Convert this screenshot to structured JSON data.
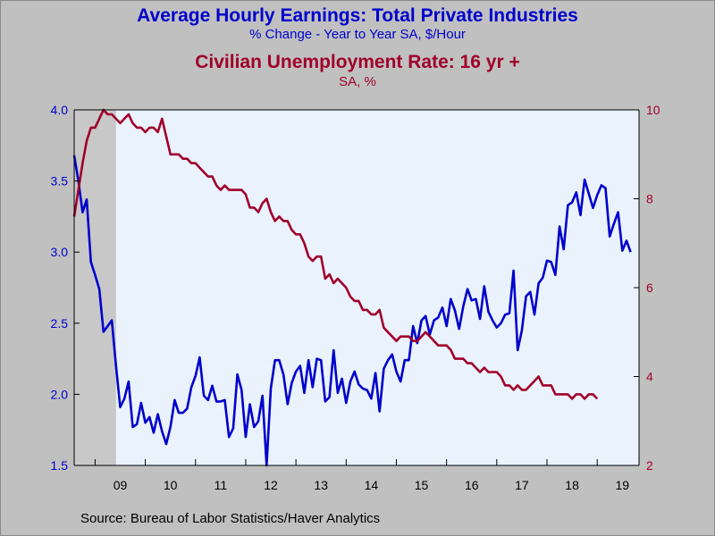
{
  "header": {
    "title1": "Average Hourly Earnings: Total Private Industries",
    "subtitle1": "% Change - Year to Year     SA, $/Hour",
    "title2": "Civilian Unemployment Rate: 16 yr +",
    "subtitle2": "SA, %"
  },
  "footer": {
    "source": "Source:  Bureau of Labor Statistics/Haver Analytics"
  },
  "chart_data": {
    "type": "line",
    "x_ticks": [
      "09",
      "10",
      "11",
      "12",
      "13",
      "14",
      "15",
      "16",
      "17",
      "18",
      "19"
    ],
    "xlim": [
      "2008-08",
      "2019-11"
    ],
    "recession_shading": {
      "start": "2008-08",
      "end": "2009-06"
    },
    "y_left": {
      "lim": [
        1.5,
        4.0
      ],
      "ticks": [
        "1.5",
        "2.0",
        "2.5",
        "3.0",
        "3.5",
        "4.0"
      ],
      "color": "#0000cc"
    },
    "y_right": {
      "lim": [
        2,
        10
      ],
      "ticks": [
        "2",
        "4",
        "6",
        "8",
        "10"
      ],
      "color": "#a0002a"
    },
    "series": [
      {
        "axis": "left",
        "color": "#0000cc",
        "start": "2008-08",
        "values": [
          3.68,
          3.5,
          3.28,
          3.37,
          2.93,
          2.84,
          2.74,
          2.44,
          2.48,
          2.52,
          2.2,
          1.91,
          1.97,
          2.09,
          1.77,
          1.79,
          1.94,
          1.8,
          1.84,
          1.73,
          1.86,
          1.74,
          1.65,
          1.77,
          1.96,
          1.87,
          1.87,
          1.9,
          2.05,
          2.13,
          2.26,
          1.99,
          1.96,
          2.06,
          1.95,
          1.95,
          1.96,
          1.7,
          1.76,
          2.14,
          2.03,
          1.7,
          1.93,
          1.77,
          1.81,
          1.99,
          1.5,
          2.04,
          2.24,
          2.24,
          2.14,
          1.93,
          2.08,
          2.16,
          2.2,
          2.01,
          2.24,
          2.05,
          2.25,
          2.24,
          1.95,
          1.98,
          2.31,
          2.01,
          2.11,
          1.94,
          2.09,
          2.16,
          2.07,
          2.04,
          2.03,
          1.97,
          2.15,
          1.88,
          2.18,
          2.24,
          2.28,
          2.16,
          2.09,
          2.24,
          2.24,
          2.48,
          2.36,
          2.52,
          2.55,
          2.42,
          2.52,
          2.54,
          2.61,
          2.48,
          2.67,
          2.59,
          2.46,
          2.62,
          2.74,
          2.66,
          2.67,
          2.53,
          2.76,
          2.58,
          2.52,
          2.47,
          2.5,
          2.56,
          2.57,
          2.87,
          2.31,
          2.45,
          2.69,
          2.72,
          2.56,
          2.78,
          2.82,
          2.94,
          2.93,
          2.84,
          3.18,
          3.02,
          3.33,
          3.35,
          3.42,
          3.26,
          3.51,
          3.41,
          3.31,
          3.4,
          3.47,
          3.45,
          3.11,
          3.2,
          3.28,
          3.01,
          3.08,
          3.0
        ]
      },
      {
        "axis": "right",
        "color": "#a0002a",
        "start": "2008-08",
        "values": [
          7.6,
          8.2,
          8.8,
          9.3,
          9.6,
          9.6,
          9.8,
          10.0,
          9.9,
          9.9,
          9.8,
          9.7,
          9.8,
          9.9,
          9.7,
          9.6,
          9.6,
          9.5,
          9.6,
          9.6,
          9.5,
          9.8,
          9.4,
          9.0,
          9.0,
          9.0,
          8.9,
          8.9,
          8.8,
          8.8,
          8.7,
          8.6,
          8.5,
          8.5,
          8.3,
          8.2,
          8.3,
          8.2,
          8.2,
          8.2,
          8.2,
          8.1,
          7.8,
          7.8,
          7.7,
          7.9,
          8.0,
          7.7,
          7.5,
          7.6,
          7.5,
          7.5,
          7.3,
          7.2,
          7.2,
          7.0,
          6.7,
          6.6,
          6.7,
          6.7,
          6.2,
          6.3,
          6.1,
          6.2,
          6.1,
          6.0,
          5.8,
          5.7,
          5.7,
          5.5,
          5.5,
          5.4,
          5.4,
          5.5,
          5.1,
          5.0,
          4.9,
          4.8,
          4.9,
          4.9,
          4.9,
          4.8,
          4.8,
          4.9,
          5.0,
          4.9,
          4.8,
          4.7,
          4.7,
          4.7,
          4.6,
          4.4,
          4.4,
          4.4,
          4.3,
          4.3,
          4.2,
          4.1,
          4.2,
          4.1,
          4.1,
          4.1,
          4.0,
          3.8,
          3.8,
          3.7,
          3.8,
          3.7,
          3.7,
          3.8,
          3.9,
          4.0,
          3.8,
          3.8,
          3.8,
          3.6,
          3.6,
          3.6,
          3.6,
          3.5,
          3.6,
          3.6,
          3.5,
          3.6,
          3.6,
          3.5
        ]
      }
    ]
  }
}
